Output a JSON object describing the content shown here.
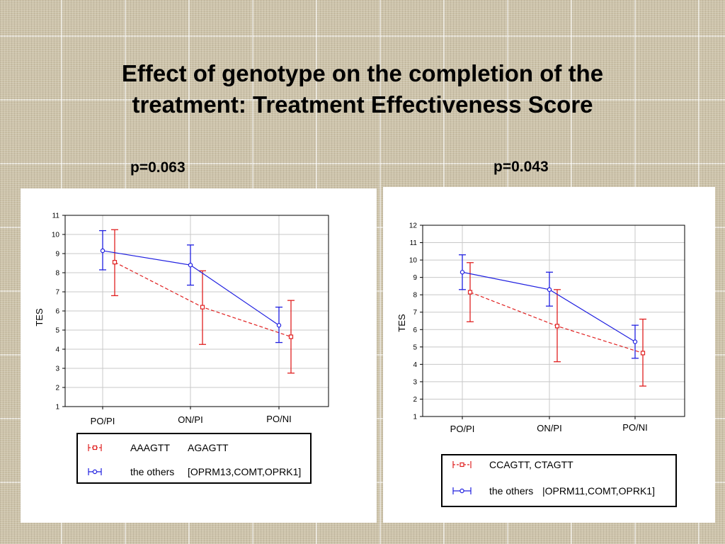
{
  "title_line1": "Effect of genotype on the completion of the",
  "title_line2": "treatment: Treatment Effectiveness Score",
  "chart_data": [
    {
      "type": "line",
      "annotation": "p=0.063",
      "ylabel": "TES",
      "categories": [
        "PO/PI",
        "ON/PI",
        "PO/NI"
      ],
      "ylim": [
        1,
        11
      ],
      "yticks": [
        1,
        2,
        3,
        4,
        5,
        6,
        7,
        8,
        9,
        10,
        11
      ],
      "grid": true,
      "series": [
        {
          "legend_label": "AAAGTT",
          "legend_label_extra": "AGAGTT",
          "color": "#e02020",
          "dashed": true,
          "marker": "square",
          "values": [
            8.55,
            6.2,
            4.65
          ],
          "lower": [
            6.8,
            4.25,
            2.75
          ],
          "upper": [
            10.25,
            8.1,
            6.55
          ]
        },
        {
          "legend_label": "the others",
          "legend_label_extra": "[OPRM13,COMT,OPRK1]",
          "color": "#2020e0",
          "dashed": false,
          "marker": "circle",
          "values": [
            9.15,
            8.4,
            5.25
          ],
          "lower": [
            8.15,
            7.35,
            4.35
          ],
          "upper": [
            10.2,
            9.45,
            6.2
          ]
        }
      ]
    },
    {
      "type": "line",
      "annotation": "p=0.043",
      "ylabel": "TES",
      "categories": [
        "PO/PI",
        "ON/PI",
        "PO/NI"
      ],
      "ylim": [
        1,
        12
      ],
      "yticks": [
        1,
        2,
        3,
        4,
        5,
        6,
        7,
        8,
        9,
        10,
        11,
        12
      ],
      "grid": true,
      "series": [
        {
          "legend_label": "CCAGTT, CTAGTT",
          "legend_label_extra": "",
          "color": "#e02020",
          "dashed": true,
          "marker": "square",
          "values": [
            8.15,
            6.2,
            4.65
          ],
          "lower": [
            6.45,
            4.15,
            2.75
          ],
          "upper": [
            9.85,
            8.3,
            6.6
          ]
        },
        {
          "legend_label": "the others",
          "legend_label_extra": "|OPRM11,COMT,OPRK1]",
          "color": "#2020e0",
          "dashed": false,
          "marker": "circle",
          "values": [
            9.3,
            8.3,
            5.3
          ],
          "lower": [
            8.3,
            7.35,
            4.35
          ],
          "upper": [
            10.3,
            9.3,
            6.25
          ]
        }
      ]
    }
  ]
}
